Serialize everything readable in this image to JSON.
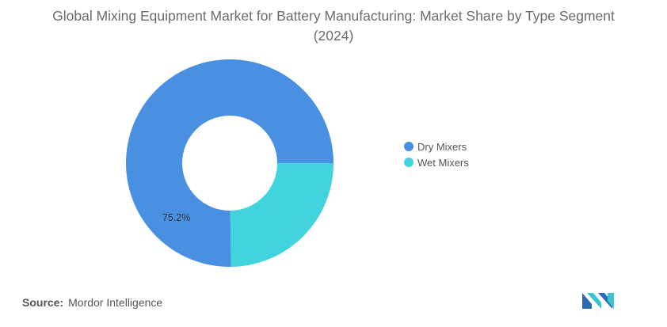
{
  "chart_data": {
    "type": "pie",
    "title": "Global Mixing Equipment Market for Battery Manufacturing: Market Share by Type Segment (2024)",
    "categories": [
      "Dry Mixers",
      "Wet Mixers"
    ],
    "values": [
      75.2,
      24.8
    ],
    "data_labels": [
      "75.2%",
      ""
    ],
    "colors": [
      "#4a90e2",
      "#42d4dc"
    ],
    "legend_placement": "right"
  },
  "source": {
    "label": "Source:",
    "text": "Mordor Intelligence"
  },
  "logo": {
    "icon": "mordor-intelligence-logo",
    "colors": [
      "#2b6cb0",
      "#38c6d0"
    ]
  }
}
